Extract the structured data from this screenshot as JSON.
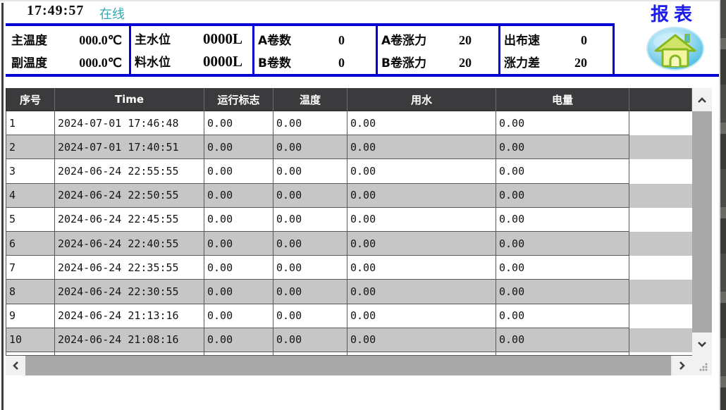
{
  "titlebar": {
    "time": "17:49:57",
    "status": "在线",
    "page_title": "报表"
  },
  "status_panel": {
    "sections": [
      {
        "rows": [
          {
            "label": "主温度",
            "value": "000.0℃"
          },
          {
            "label": "副温度",
            "value": "000.0℃"
          }
        ]
      },
      {
        "rows": [
          {
            "label": "主水位",
            "value": "0000L"
          },
          {
            "label": "料水位",
            "value": "0000L"
          }
        ]
      },
      {
        "rows": [
          {
            "label": "A卷数",
            "value": "0"
          },
          {
            "label": "B卷数",
            "value": "0"
          }
        ]
      },
      {
        "rows": [
          {
            "label": "A卷涨力",
            "value": "20"
          },
          {
            "label": "B卷涨力",
            "value": "20"
          }
        ]
      },
      {
        "rows": [
          {
            "label": "出布速",
            "value": "0"
          },
          {
            "label": "涨力差",
            "value": "20"
          }
        ]
      }
    ]
  },
  "table": {
    "headers": [
      "序号",
      "Time",
      "运行标志",
      "温度",
      "用水",
      "电量",
      ""
    ],
    "rows": [
      [
        "1",
        "2024-07-01 17:46:48",
        "0.00",
        "0.00",
        "0.00",
        "0.00",
        ""
      ],
      [
        "2",
        "2024-07-01 17:40:51",
        "0.00",
        "0.00",
        "0.00",
        "0.00",
        ""
      ],
      [
        "3",
        "2024-06-24 22:55:55",
        "0.00",
        "0.00",
        "0.00",
        "0.00",
        ""
      ],
      [
        "4",
        "2024-06-24 22:50:55",
        "0.00",
        "0.00",
        "0.00",
        "0.00",
        ""
      ],
      [
        "5",
        "2024-06-24 22:45:55",
        "0.00",
        "0.00",
        "0.00",
        "0.00",
        ""
      ],
      [
        "6",
        "2024-06-24 22:40:55",
        "0.00",
        "0.00",
        "0.00",
        "0.00",
        ""
      ],
      [
        "7",
        "2024-06-24 22:35:55",
        "0.00",
        "0.00",
        "0.00",
        "0.00",
        ""
      ],
      [
        "8",
        "2024-06-24 22:30:55",
        "0.00",
        "0.00",
        "0.00",
        "0.00",
        ""
      ],
      [
        "9",
        "2024-06-24 21:13:16",
        "0.00",
        "0.00",
        "0.00",
        "0.00",
        ""
      ],
      [
        "10",
        "2024-06-24 21:08:16",
        "0.00",
        "0.00",
        "0.00",
        "0.00",
        ""
      ]
    ]
  },
  "icons": {
    "home": "home-icon",
    "scroll_up": "chevron-up-icon",
    "scroll_down": "chevron-down-icon",
    "scroll_left": "chevron-left-icon",
    "scroll_right": "chevron-right-icon",
    "resize_grip": "resize-grip-icon"
  },
  "colors": {
    "accent_blue": "#0101d6",
    "title_blue": "#1b1bea",
    "status_teal": "#35a8b5",
    "header_bg": "#3b3b3d",
    "row_alt": "#c6c6c6",
    "grid_line": "#58585a",
    "scroll_thumb": "#a8a8a8",
    "scroll_button_bg": "#f1f1f1"
  }
}
